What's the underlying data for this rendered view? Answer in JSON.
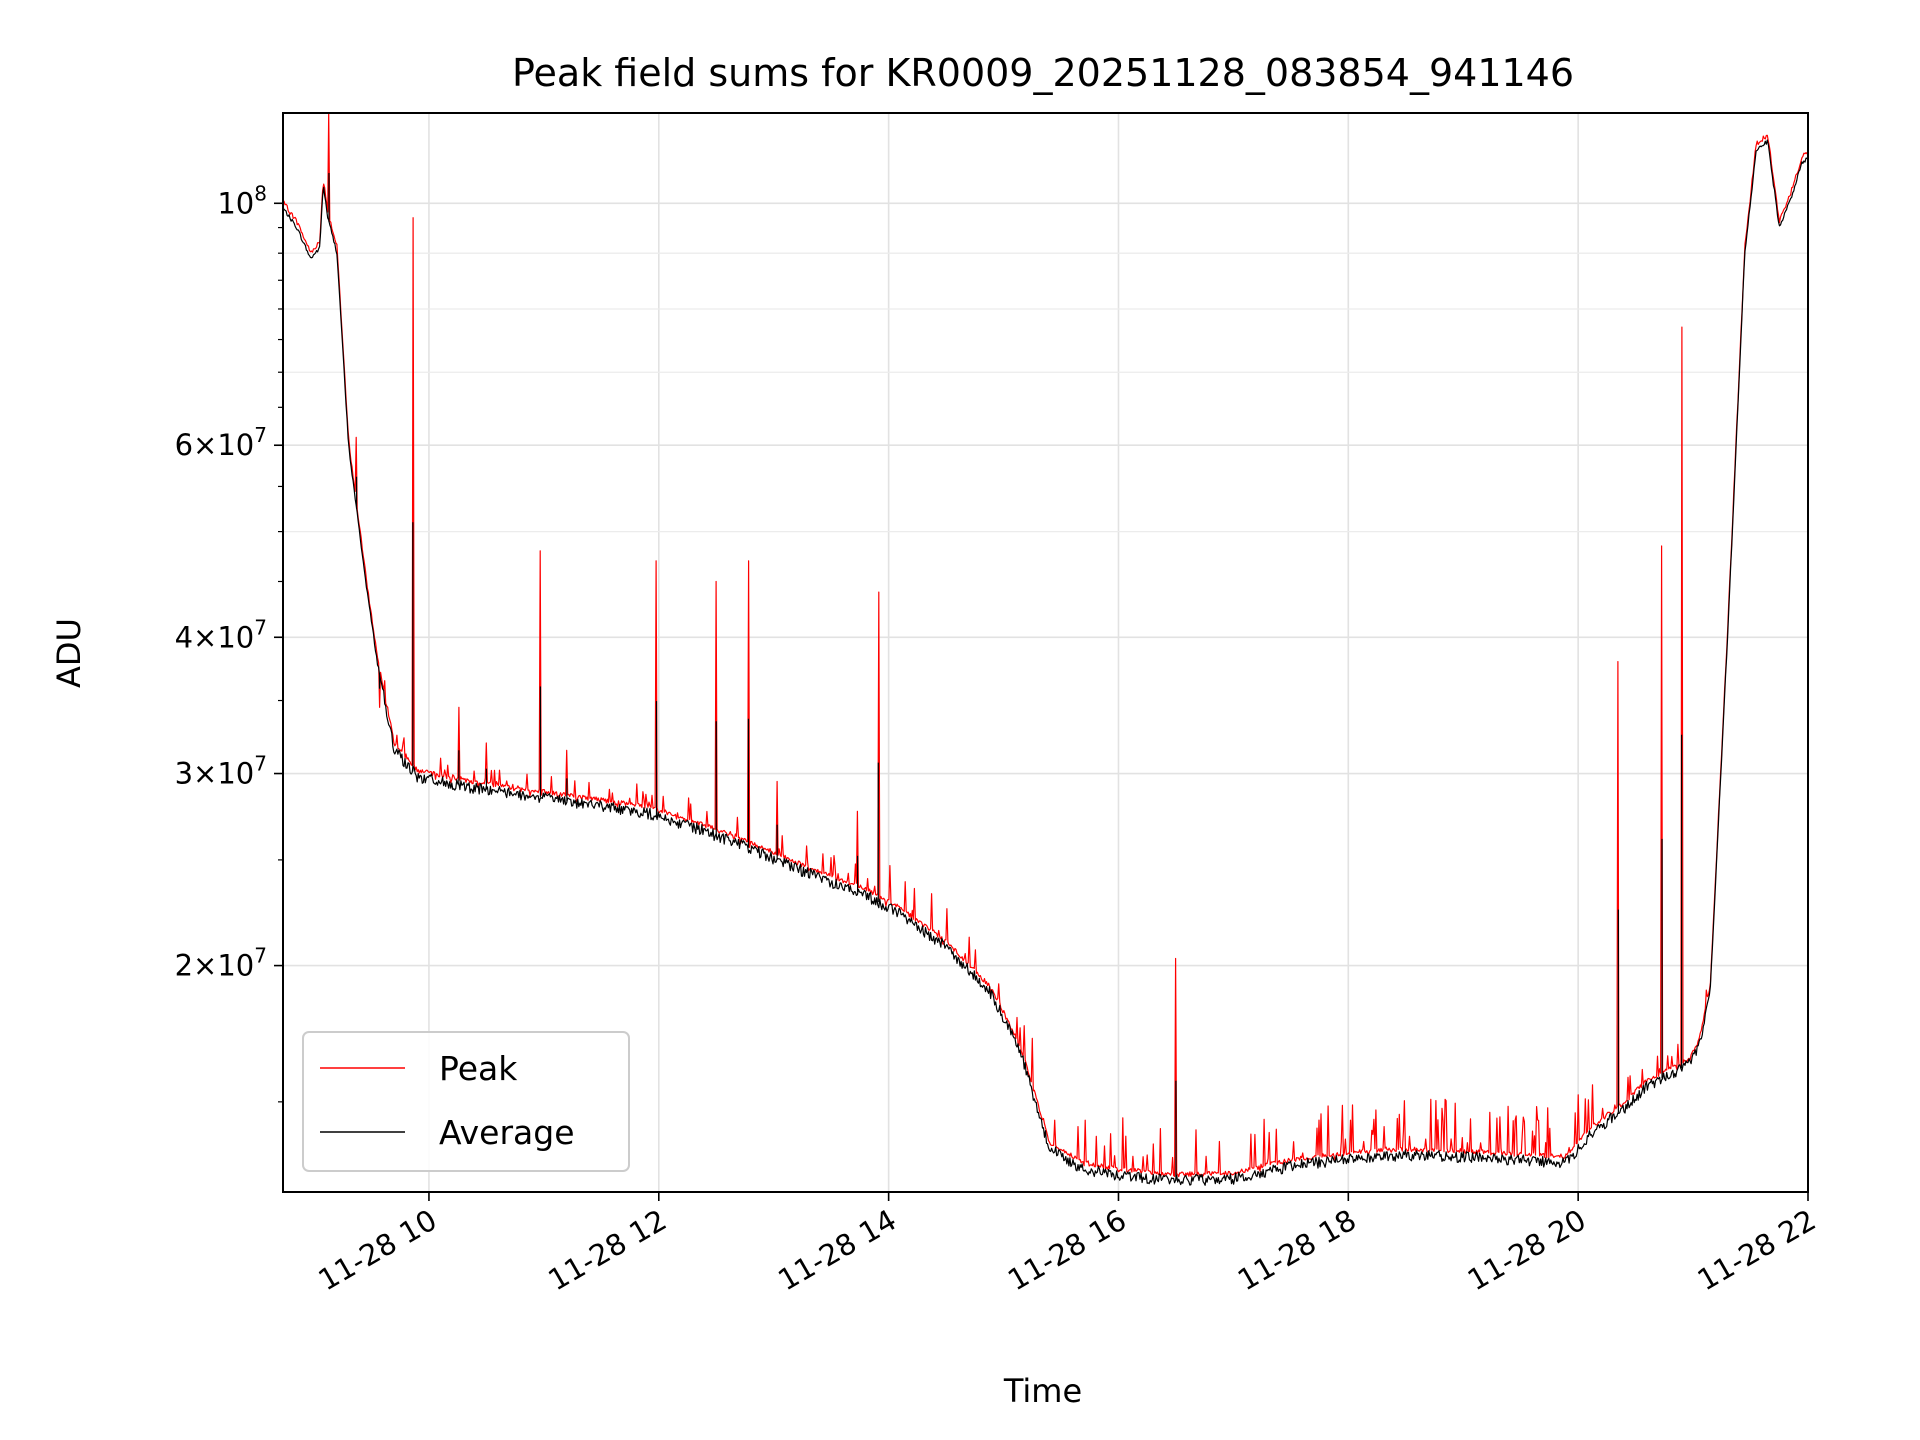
{
  "chart_data": {
    "type": "line",
    "title": "Peak field sums for KR0009_20251128_083854_941146",
    "xlabel": "Time",
    "ylabel": "ADU",
    "yscale": "log",
    "xlim_hours": [
      8.73,
      22.0
    ],
    "ylim": [
      12400000,
      121000000
    ],
    "grid": true,
    "legend_position": "lower left",
    "x_ticks": [
      {
        "value": 10,
        "label": "11-28 10"
      },
      {
        "value": 12,
        "label": "11-28 12"
      },
      {
        "value": 14,
        "label": "11-28 14"
      },
      {
        "value": 16,
        "label": "11-28 16"
      },
      {
        "value": 18,
        "label": "11-28 18"
      },
      {
        "value": 20,
        "label": "11-28 20"
      },
      {
        "value": 22,
        "label": "11-28 22"
      }
    ],
    "y_major_ticks": [
      {
        "value": 100000000,
        "label": "10",
        "exp": "8",
        "mant": ""
      },
      {
        "value": 60000000,
        "label": "6×10",
        "exp": "7",
        "mant": "6"
      },
      {
        "value": 40000000,
        "label": "4×10",
        "exp": "7",
        "mant": "4"
      },
      {
        "value": 30000000,
        "label": "3×10",
        "exp": "7",
        "mant": "3"
      },
      {
        "value": 20000000,
        "label": "2×10",
        "exp": "7",
        "mant": "2"
      }
    ],
    "y_minor_gridlines": [
      50000000,
      70000000,
      80000000,
      90000000
    ],
    "series": [
      {
        "name": "Peak",
        "color": "#ff0000"
      },
      {
        "name": "Average",
        "color": "#000000"
      }
    ],
    "average_baseline": [
      [
        8.73,
        99000000
      ],
      [
        8.85,
        95000000
      ],
      [
        8.97,
        89000000
      ],
      [
        9.05,
        91000000
      ],
      [
        9.08,
        104000000
      ],
      [
        9.12,
        97000000
      ],
      [
        9.2,
        90000000
      ],
      [
        9.3,
        60000000
      ],
      [
        9.45,
        45000000
      ],
      [
        9.55,
        38000000
      ],
      [
        9.7,
        31500000
      ],
      [
        9.9,
        29800000
      ],
      [
        10.3,
        29200000
      ],
      [
        11.0,
        28500000
      ],
      [
        11.5,
        28000000
      ],
      [
        11.9,
        27600000
      ],
      [
        12.3,
        26800000
      ],
      [
        12.8,
        25600000
      ],
      [
        13.3,
        24300000
      ],
      [
        13.8,
        23200000
      ],
      [
        14.1,
        22300000
      ],
      [
        14.5,
        20800000
      ],
      [
        14.9,
        18800000
      ],
      [
        15.15,
        16600000
      ],
      [
        15.4,
        13600000
      ],
      [
        15.7,
        13000000
      ],
      [
        16.0,
        12850000
      ],
      [
        16.5,
        12700000
      ],
      [
        17.0,
        12750000
      ],
      [
        17.5,
        13100000
      ],
      [
        18.0,
        13300000
      ],
      [
        18.5,
        13400000
      ],
      [
        19.0,
        13350000
      ],
      [
        19.5,
        13250000
      ],
      [
        19.9,
        13200000
      ],
      [
        20.1,
        14000000
      ],
      [
        20.4,
        14800000
      ],
      [
        20.6,
        15500000
      ],
      [
        20.95,
        16200000
      ],
      [
        21.05,
        16800000
      ],
      [
        21.15,
        19000000
      ],
      [
        21.3,
        40000000
      ],
      [
        21.45,
        90000000
      ],
      [
        21.55,
        112000000
      ],
      [
        21.65,
        114000000
      ],
      [
        21.75,
        95000000
      ],
      [
        21.85,
        101000000
      ],
      [
        21.95,
        109000000
      ],
      [
        22.0,
        110000000
      ]
    ],
    "peak_spikes": [
      {
        "x": 9.13,
        "y": 121000000
      },
      {
        "x": 9.37,
        "y": 61000000
      },
      {
        "x": 9.57,
        "y": 34500000
      },
      {
        "x": 9.86,
        "y": 97000000
      },
      {
        "x": 10.26,
        "y": 34500000
      },
      {
        "x": 10.5,
        "y": 32000000
      },
      {
        "x": 10.97,
        "y": 48000000
      },
      {
        "x": 11.2,
        "y": 31500000
      },
      {
        "x": 11.98,
        "y": 47000000
      },
      {
        "x": 12.5,
        "y": 45000000
      },
      {
        "x": 12.78,
        "y": 47000000
      },
      {
        "x": 13.03,
        "y": 29500000
      },
      {
        "x": 13.73,
        "y": 27700000
      },
      {
        "x": 13.91,
        "y": 44000000
      },
      {
        "x": 16.5,
        "y": 20300000
      },
      {
        "x": 20.35,
        "y": 38000000
      },
      {
        "x": 20.73,
        "y": 48500000
      },
      {
        "x": 20.9,
        "y": 77000000
      }
    ]
  }
}
